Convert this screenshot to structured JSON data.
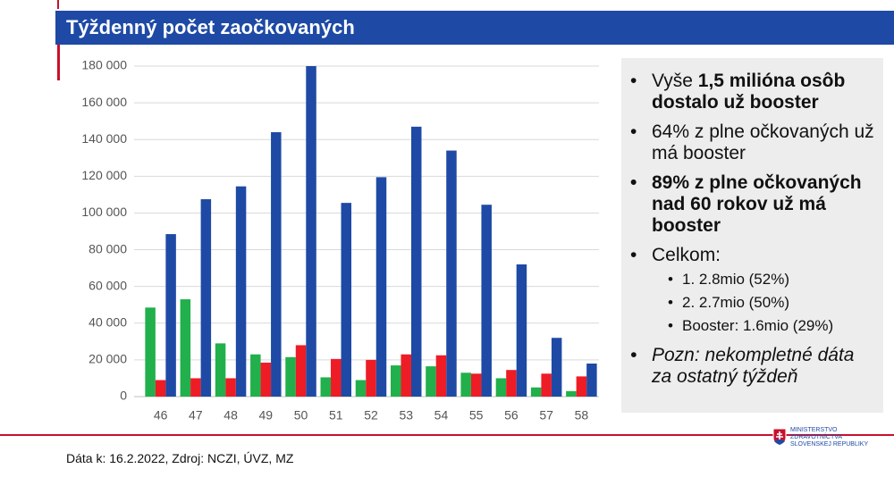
{
  "header": {
    "title": "Týždenný počet zaočkovaných"
  },
  "chart_data": {
    "type": "bar",
    "categories": [
      "46",
      "47",
      "48",
      "49",
      "50",
      "51",
      "52",
      "53",
      "54",
      "55",
      "56",
      "57",
      "58"
    ],
    "series": [
      {
        "color": "#21b04b",
        "values": [
          48500,
          53000,
          29000,
          23000,
          21500,
          10500,
          9000,
          17000,
          16500,
          13000,
          10000,
          5000,
          3000
        ]
      },
      {
        "color": "#ee1c25",
        "values": [
          9000,
          10000,
          10000,
          18500,
          28000,
          20500,
          20000,
          23000,
          22500,
          12500,
          14500,
          12500,
          11000
        ]
      },
      {
        "color": "#1e4aa5",
        "values": [
          88500,
          107500,
          114500,
          144000,
          180000,
          105500,
          119500,
          147000,
          134000,
          104500,
          72000,
          32000,
          18000
        ]
      }
    ],
    "ylim": [
      0,
      180000
    ],
    "yticks": [
      0,
      {
        "value": 20000,
        "label": "20 000"
      },
      {
        "value": 40000,
        "label": "40 000"
      },
      {
        "value": 60000,
        "label": "60 000"
      },
      {
        "value": 80000,
        "label": "80 000"
      },
      {
        "value": 100000,
        "label": "100 000"
      },
      {
        "value": 120000,
        "label": "120 000"
      },
      {
        "value": 140000,
        "label": "140 000"
      },
      {
        "value": 160000,
        "label": "160 000"
      },
      {
        "value": 180000,
        "label": "180 000"
      }
    ],
    "grid": true
  },
  "panel": {
    "bullets": [
      {
        "lead": "Vyše",
        "bold": "1,5 milióna osôb dostalo už booster"
      },
      {
        "text": "64% z plne očkovaných už má booster"
      },
      {
        "bold": "89% z plne očkovaných nad 60 rokov už má booster"
      },
      {
        "text": "Celkom:",
        "sub": [
          "1. 2.8mio (52%)",
          "2. 2.7mio (50%)",
          "Booster: 1.6mio (29%)"
        ]
      },
      {
        "italic": "Pozn: nekompletné dáta za ostatný týždeň"
      }
    ]
  },
  "footer": {
    "source": "Dáta k: 16.2.2022, Zdroj: NCZI, ÚVZ, MZ",
    "logo": [
      "MINISTERSTVO",
      "ZDRAVOTNÍCTVA",
      "SLOVENSKEJ REPUBLIKY"
    ]
  }
}
